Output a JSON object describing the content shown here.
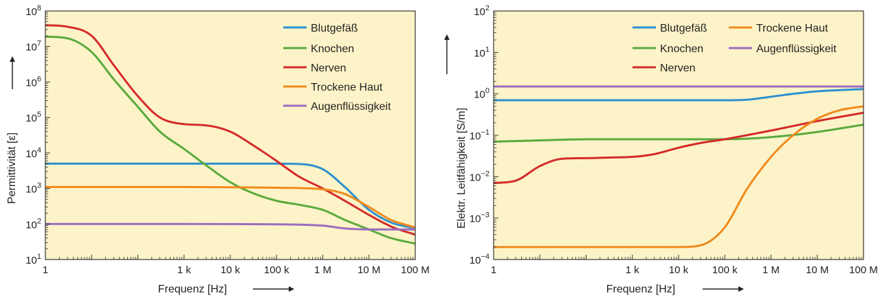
{
  "chart_data": [
    {
      "type": "line",
      "title": "",
      "xlabel": "Frequenz [Hz]",
      "ylabel": "Permittivität [ε]",
      "xscale": "log",
      "yscale": "log",
      "xlim": [
        1,
        100000000
      ],
      "ylim": [
        10,
        100000000
      ],
      "xticks": [
        {
          "value": 1,
          "label": "1"
        },
        {
          "value": 1000,
          "label": "1 k"
        },
        {
          "value": 10000,
          "label": "10 k"
        },
        {
          "value": 100000,
          "label": "100 k"
        },
        {
          "value": 1000000,
          "label": "1 M"
        },
        {
          "value": 10000000,
          "label": "10 M"
        },
        {
          "value": 100000000,
          "label": "100 M"
        }
      ],
      "yticks": [
        {
          "value": 10,
          "base": "10",
          "exp": "1"
        },
        {
          "value": 100,
          "base": "10",
          "exp": "2"
        },
        {
          "value": 1000,
          "base": "10",
          "exp": "3"
        },
        {
          "value": 10000,
          "base": "10",
          "exp": "4"
        },
        {
          "value": 100000,
          "base": "10",
          "exp": "5"
        },
        {
          "value": 1000000,
          "base": "10",
          "exp": "6"
        },
        {
          "value": 10000000,
          "base": "10",
          "exp": "7"
        },
        {
          "value": 100000000,
          "base": "10",
          "exp": "8"
        }
      ],
      "grid": false,
      "legend_position": "top-right",
      "background": "#fdf3c8",
      "series": [
        {
          "name": "Blutgefäß",
          "color": "#2e8fd0",
          "x": [
            1,
            1000,
            100000,
            300000,
            1000000,
            3000000,
            10000000,
            30000000,
            100000000
          ],
          "y": [
            5000,
            5000,
            5000,
            4900,
            3500,
            1100,
            250,
            110,
            75
          ]
        },
        {
          "name": "Knochen",
          "color": "#5aaa3c",
          "x": [
            1,
            3,
            10,
            30,
            100,
            300,
            1000,
            3000,
            10000,
            30000,
            100000,
            300000,
            1000000,
            3000000,
            10000000,
            30000000,
            100000000
          ],
          "y": [
            19000000,
            17000000,
            7000000,
            1200000,
            200000,
            40000,
            13000,
            4500,
            1500,
            750,
            450,
            350,
            250,
            130,
            70,
            40,
            28
          ]
        },
        {
          "name": "Nerven",
          "color": "#d42a2a",
          "x": [
            1,
            3,
            10,
            30,
            100,
            300,
            1000,
            3000,
            10000,
            30000,
            100000,
            300000,
            1000000,
            3000000,
            10000000,
            30000000,
            100000000
          ],
          "y": [
            40000000,
            36000000,
            20000000,
            3000000,
            400000,
            100000,
            65000,
            60000,
            40000,
            17000,
            6000,
            2200,
            1000,
            450,
            180,
            85,
            50
          ]
        },
        {
          "name": "Trockene Haut",
          "color": "#f08a1c",
          "x": [
            1,
            1000,
            100000,
            1000000,
            3000000,
            10000000,
            30000000,
            100000000
          ],
          "y": [
            1100,
            1100,
            1050,
            950,
            700,
            300,
            130,
            80
          ]
        },
        {
          "name": "Augenflüssigkeit",
          "color": "#9a6cc0",
          "x": [
            1,
            1000,
            100000,
            1000000,
            3000000,
            10000000,
            100000000
          ],
          "y": [
            100,
            100,
            98,
            90,
            75,
            70,
            70
          ]
        }
      ]
    },
    {
      "type": "line",
      "title": "",
      "xlabel": "Frequenz [Hz]",
      "ylabel": "Elektr. Leitfähigkeit [S/m]",
      "xscale": "log",
      "yscale": "log",
      "xlim": [
        1,
        100000000
      ],
      "ylim": [
        0.0001,
        100
      ],
      "xticks": [
        {
          "value": 1,
          "label": "1"
        },
        {
          "value": 1000,
          "label": "1 k"
        },
        {
          "value": 10000,
          "label": "10 k"
        },
        {
          "value": 100000,
          "label": "100 k"
        },
        {
          "value": 1000000,
          "label": "1 M"
        },
        {
          "value": 10000000,
          "label": "10 M"
        },
        {
          "value": 100000000,
          "label": "100 M"
        }
      ],
      "yticks": [
        {
          "value": 0.0001,
          "base": "10",
          "exp": "−4"
        },
        {
          "value": 0.001,
          "base": "10",
          "exp": "−3"
        },
        {
          "value": 0.01,
          "base": "10",
          "exp": "−2"
        },
        {
          "value": 0.1,
          "base": "10",
          "exp": "−1"
        },
        {
          "value": 1,
          "base": "10",
          "exp": "0"
        },
        {
          "value": 10,
          "base": "10",
          "exp": "1"
        },
        {
          "value": 100,
          "base": "10",
          "exp": "2"
        }
      ],
      "grid": false,
      "legend_position": "top-right",
      "background": "#fdf3c8",
      "series": [
        {
          "name": "Blutgefäß",
          "color": "#2e8fd0",
          "x": [
            1,
            1000,
            100000,
            300000,
            1000000,
            3000000,
            10000000,
            100000000
          ],
          "y": [
            0.7,
            0.7,
            0.7,
            0.72,
            0.85,
            1.0,
            1.15,
            1.3
          ]
        },
        {
          "name": "Knochen",
          "color": "#5aaa3c",
          "x": [
            1,
            10,
            100,
            1000,
            10000,
            100000,
            1000000,
            10000000,
            100000000
          ],
          "y": [
            0.07,
            0.075,
            0.08,
            0.08,
            0.08,
            0.08,
            0.09,
            0.12,
            0.18
          ]
        },
        {
          "name": "Nerven",
          "color": "#d42a2a",
          "x": [
            1,
            3,
            10,
            30,
            100,
            300,
            1000,
            3000,
            10000,
            30000,
            100000,
            1000000,
            10000000,
            100000000
          ],
          "y": [
            0.007,
            0.008,
            0.018,
            0.027,
            0.028,
            0.029,
            0.03,
            0.035,
            0.05,
            0.065,
            0.08,
            0.13,
            0.22,
            0.35
          ]
        },
        {
          "name": "Trockene Haut",
          "color": "#f08a1c",
          "x": [
            1,
            1000,
            10000,
            30000,
            100000,
            300000,
            1000000,
            3000000,
            10000000,
            30000000,
            100000000
          ],
          "y": [
            0.0002,
            0.0002,
            0.0002,
            0.00022,
            0.0006,
            0.005,
            0.03,
            0.1,
            0.25,
            0.4,
            0.5
          ]
        },
        {
          "name": "Augenflüssigkeit",
          "color": "#9a6cc0",
          "x": [
            1,
            100000000
          ],
          "y": [
            1.5,
            1.5
          ]
        }
      ]
    }
  ]
}
